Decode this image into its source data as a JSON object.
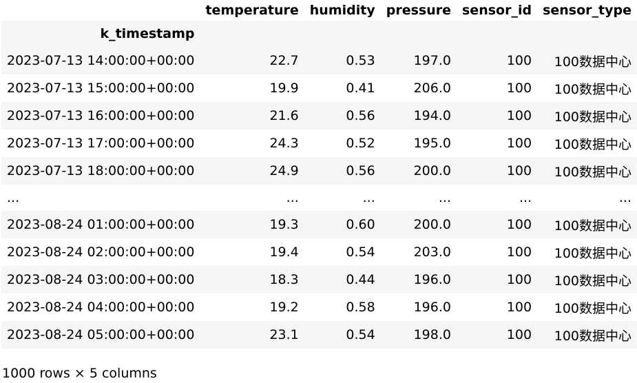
{
  "table": {
    "columns": [
      "temperature",
      "humidity",
      "pressure",
      "sensor_id",
      "sensor_type"
    ],
    "index_name": "k_timestamp",
    "rows": [
      {
        "k_timestamp": "2023-07-13 14:00:00+00:00",
        "temperature": "22.7",
        "humidity": "0.53",
        "pressure": "197.0",
        "sensor_id": "100",
        "sensor_type": "100数据中心"
      },
      {
        "k_timestamp": "2023-07-13 15:00:00+00:00",
        "temperature": "19.9",
        "humidity": "0.41",
        "pressure": "206.0",
        "sensor_id": "100",
        "sensor_type": "100数据中心"
      },
      {
        "k_timestamp": "2023-07-13 16:00:00+00:00",
        "temperature": "21.6",
        "humidity": "0.56",
        "pressure": "194.0",
        "sensor_id": "100",
        "sensor_type": "100数据中心"
      },
      {
        "k_timestamp": "2023-07-13 17:00:00+00:00",
        "temperature": "24.3",
        "humidity": "0.52",
        "pressure": "195.0",
        "sensor_id": "100",
        "sensor_type": "100数据中心"
      },
      {
        "k_timestamp": "2023-07-13 18:00:00+00:00",
        "temperature": "24.9",
        "humidity": "0.56",
        "pressure": "200.0",
        "sensor_id": "100",
        "sensor_type": "100数据中心"
      },
      {
        "k_timestamp": "...",
        "temperature": "...",
        "humidity": "...",
        "pressure": "...",
        "sensor_id": "...",
        "sensor_type": "..."
      },
      {
        "k_timestamp": "2023-08-24 01:00:00+00:00",
        "temperature": "19.3",
        "humidity": "0.60",
        "pressure": "200.0",
        "sensor_id": "100",
        "sensor_type": "100数据中心"
      },
      {
        "k_timestamp": "2023-08-24 02:00:00+00:00",
        "temperature": "19.4",
        "humidity": "0.54",
        "pressure": "203.0",
        "sensor_id": "100",
        "sensor_type": "100数据中心"
      },
      {
        "k_timestamp": "2023-08-24 03:00:00+00:00",
        "temperature": "18.3",
        "humidity": "0.44",
        "pressure": "196.0",
        "sensor_id": "100",
        "sensor_type": "100数据中心"
      },
      {
        "k_timestamp": "2023-08-24 04:00:00+00:00",
        "temperature": "19.2",
        "humidity": "0.58",
        "pressure": "196.0",
        "sensor_id": "100",
        "sensor_type": "100数据中心"
      },
      {
        "k_timestamp": "2023-08-24 05:00:00+00:00",
        "temperature": "23.1",
        "humidity": "0.54",
        "pressure": "198.0",
        "sensor_id": "100",
        "sensor_type": "100数据中心"
      }
    ],
    "footer": "1000 rows × 5 columns"
  },
  "colors": {
    "stripe": "#f5f5f5",
    "background": "#ffffff",
    "text": "#000000"
  }
}
